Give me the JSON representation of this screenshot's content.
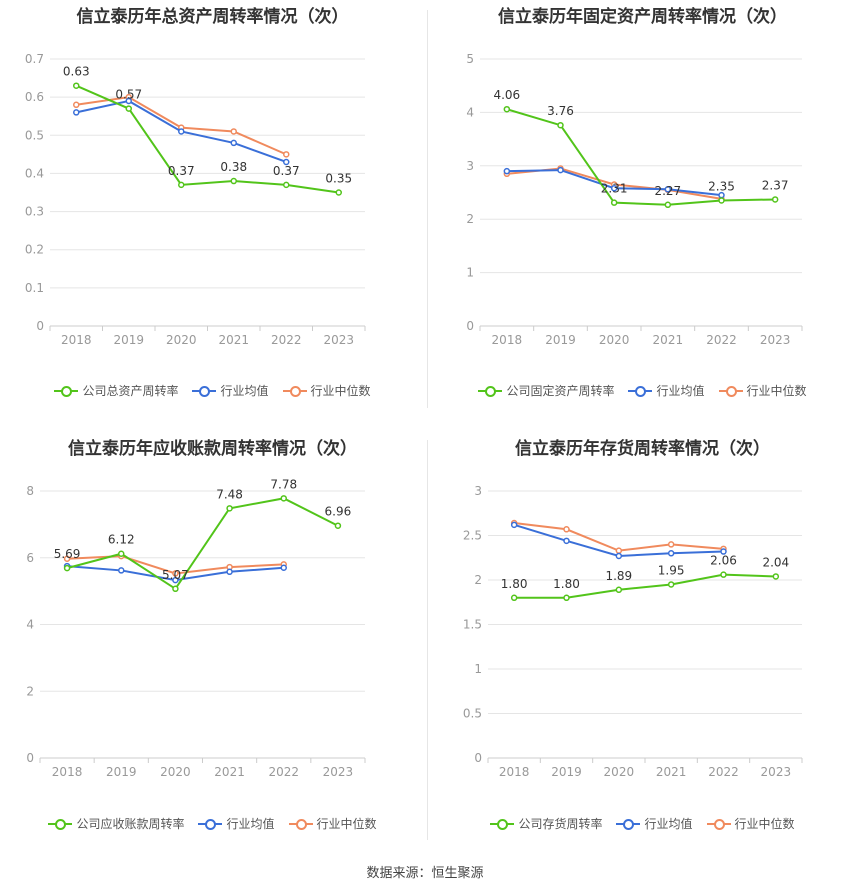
{
  "source": "数据来源：恒生聚源",
  "legend_common": {
    "avg": "行业均值",
    "median": "行业中位数"
  },
  "colors": {
    "company": "#52c41a",
    "avg": "#3a6fd8",
    "median": "#f08a5d",
    "grid": "#e5e5e5",
    "axis": "#999999"
  },
  "chart_data": [
    {
      "type": "line",
      "title": "信立泰历年总资产周转率情况（次）",
      "categories": [
        "2018",
        "2019",
        "2020",
        "2021",
        "2022",
        "2023"
      ],
      "ylim": [
        0,
        0.7
      ],
      "yticks": [
        0,
        0.1,
        0.2,
        0.3,
        0.4,
        0.5,
        0.6,
        0.7
      ],
      "ytick_labels": [
        "0",
        "0.1",
        "0.2",
        "0.3",
        "0.4",
        "0.5",
        "0.6",
        "0.7"
      ],
      "series": [
        {
          "name": "公司总资产周转率",
          "role": "company",
          "values": [
            0.63,
            0.57,
            0.37,
            0.38,
            0.37,
            0.35
          ],
          "labels": [
            "0.63",
            "0.57",
            "0.37",
            "0.38",
            "0.37",
            "0.35"
          ]
        },
        {
          "name": "行业均值",
          "role": "avg",
          "values": [
            0.56,
            0.59,
            0.51,
            0.48,
            0.43,
            null
          ]
        },
        {
          "name": "行业中位数",
          "role": "median",
          "values": [
            0.58,
            0.6,
            0.52,
            0.51,
            0.45,
            null
          ]
        }
      ]
    },
    {
      "type": "line",
      "title": "信立泰历年固定资产周转率情况（次）",
      "categories": [
        "2018",
        "2019",
        "2020",
        "2021",
        "2022",
        "2023"
      ],
      "ylim": [
        0,
        5
      ],
      "yticks": [
        0,
        1,
        2,
        3,
        4,
        5
      ],
      "ytick_labels": [
        "0",
        "1",
        "2",
        "3",
        "4",
        "5"
      ],
      "series": [
        {
          "name": "公司固定资产周转率",
          "role": "company",
          "values": [
            4.06,
            3.76,
            2.31,
            2.27,
            2.35,
            2.37
          ],
          "labels": [
            "4.06",
            "3.76",
            "2.31",
            "2.27",
            "2.35",
            "2.37"
          ]
        },
        {
          "name": "行业均值",
          "role": "avg",
          "values": [
            2.9,
            2.92,
            2.58,
            2.56,
            2.45,
            null
          ]
        },
        {
          "name": "行业中位数",
          "role": "median",
          "values": [
            2.85,
            2.95,
            2.65,
            2.55,
            2.38,
            null
          ]
        }
      ]
    },
    {
      "type": "line",
      "title": "信立泰历年应收账款周转率情况（次）",
      "categories": [
        "2018",
        "2019",
        "2020",
        "2021",
        "2022",
        "2023"
      ],
      "ylim": [
        0,
        8
      ],
      "yticks": [
        0,
        2,
        4,
        6,
        8
      ],
      "ytick_labels": [
        "0",
        "2",
        "4",
        "6",
        "8"
      ],
      "series": [
        {
          "name": "公司应收账款周转率",
          "role": "company",
          "values": [
            5.69,
            6.12,
            5.07,
            7.48,
            7.78,
            6.96
          ],
          "labels": [
            "5.69",
            "6.12",
            "5.07",
            "7.48",
            "7.78",
            "6.96"
          ]
        },
        {
          "name": "行业均值",
          "role": "avg",
          "values": [
            5.75,
            5.62,
            5.33,
            5.58,
            5.7,
            null
          ]
        },
        {
          "name": "行业中位数",
          "role": "median",
          "values": [
            5.97,
            6.05,
            5.53,
            5.72,
            5.8,
            null
          ]
        }
      ]
    },
    {
      "type": "line",
      "title": "信立泰历年存货周转率情况（次）",
      "categories": [
        "2018",
        "2019",
        "2020",
        "2021",
        "2022",
        "2023"
      ],
      "ylim": [
        0,
        3
      ],
      "yticks": [
        0,
        0.5,
        1,
        1.5,
        2,
        2.5,
        3
      ],
      "ytick_labels": [
        "0",
        "0.5",
        "1",
        "1.5",
        "2",
        "2.5",
        "3"
      ],
      "series": [
        {
          "name": "公司存货周转率",
          "role": "company",
          "values": [
            1.8,
            1.8,
            1.89,
            1.95,
            2.06,
            2.04
          ],
          "labels": [
            "1.80",
            "1.80",
            "1.89",
            "1.95",
            "2.06",
            "2.04"
          ]
        },
        {
          "name": "行业均值",
          "role": "avg",
          "values": [
            2.62,
            2.44,
            2.27,
            2.3,
            2.32,
            null
          ]
        },
        {
          "name": "行业中位数",
          "role": "median",
          "values": [
            2.64,
            2.57,
            2.33,
            2.4,
            2.35,
            null
          ]
        }
      ]
    }
  ]
}
